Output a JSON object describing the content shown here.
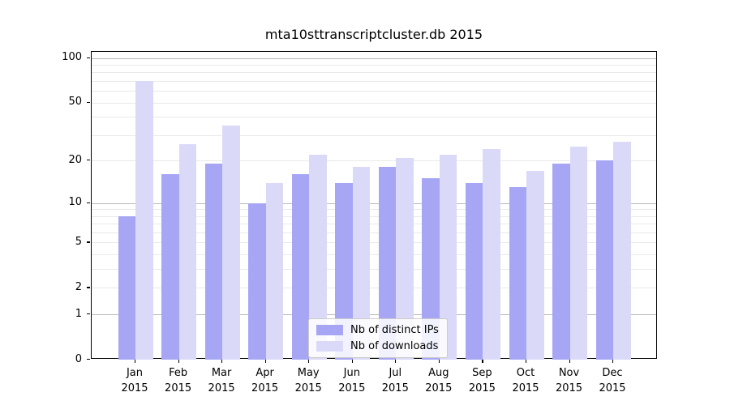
{
  "title": "mta10sttranscriptcluster.db 2015",
  "chart_data": {
    "type": "bar",
    "title": "mta10sttranscriptcluster.db 2015",
    "categories": [
      "Jan",
      "Feb",
      "Mar",
      "Apr",
      "May",
      "Jun",
      "Jul",
      "Aug",
      "Sep",
      "Oct",
      "Nov",
      "Dec"
    ],
    "x_year_label": "2015",
    "series": [
      {
        "name": "Nb of distinct IPs",
        "color": "#a6a6f5",
        "values": [
          8,
          16,
          19,
          10,
          16,
          14,
          18,
          15,
          14,
          13,
          19,
          20
        ]
      },
      {
        "name": "Nb of downloads",
        "color": "#dadaf8",
        "values": [
          70,
          26,
          35,
          14,
          22,
          18,
          21,
          22,
          24,
          17,
          25,
          27
        ]
      }
    ],
    "xlabel": "",
    "ylabel": "",
    "yscale": "log1p",
    "ylim": [
      0,
      110
    ],
    "y_tick_values": [
      0,
      1,
      2,
      5,
      10,
      20,
      50,
      100
    ],
    "y_tick_labels": [
      "0",
      "1",
      "2",
      "5",
      "10",
      "20",
      "50",
      "100"
    ],
    "y_major_gridlines": [
      1,
      10,
      100
    ],
    "y_minor_gridlines": [
      2,
      3,
      4,
      5,
      6,
      7,
      8,
      9,
      20,
      30,
      40,
      50,
      60,
      70,
      80,
      90
    ],
    "grid": "on",
    "legend_position": "lower center"
  },
  "colors": {
    "distinct_ips_bar": "#a6a6f5",
    "downloads_bar": "#dadaf8",
    "major_grid": "#b9b9b9",
    "minor_grid": "#e9e9e9",
    "axis": "#000000"
  }
}
